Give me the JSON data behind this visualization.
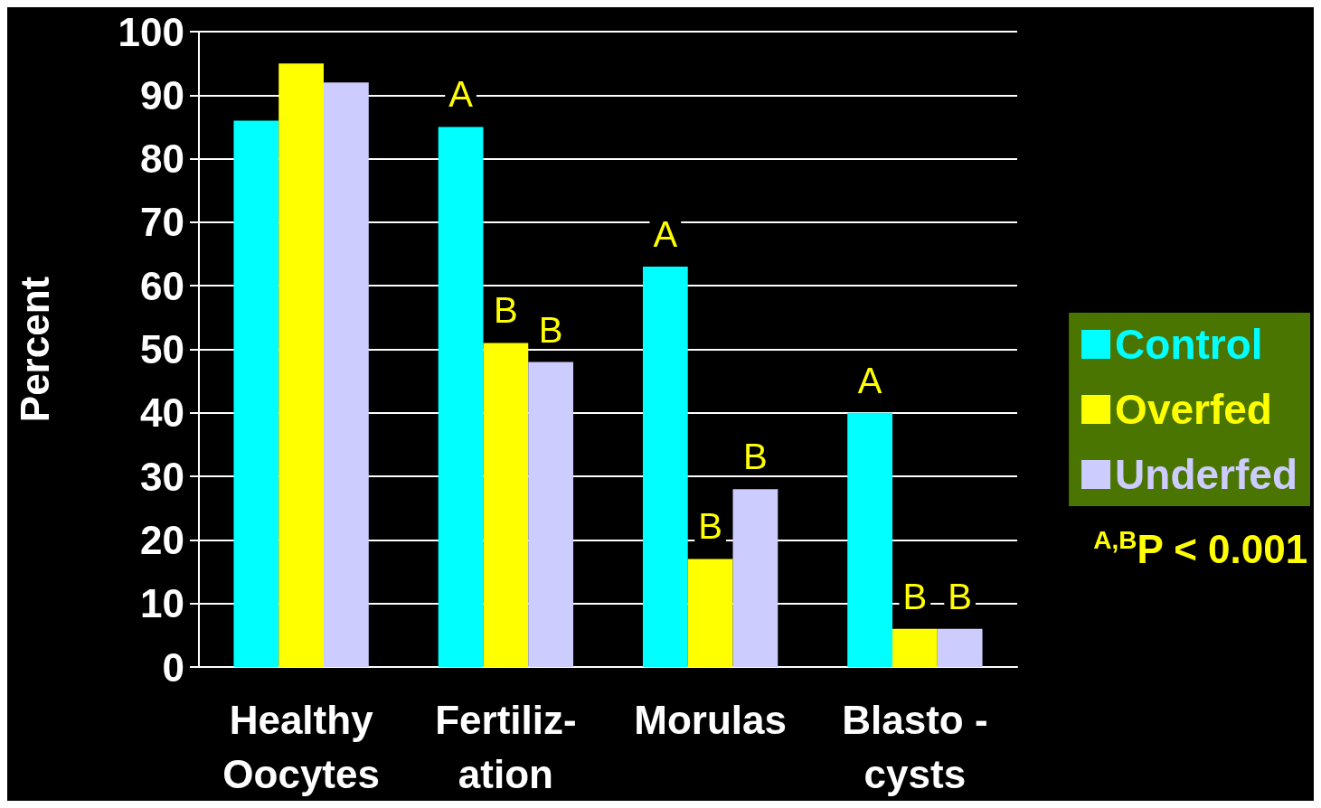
{
  "chart_data": {
    "type": "bar",
    "ylabel": "Percent",
    "categories": [
      "Healthy\nOocytes",
      "Fertiliz-\nation",
      "Morulas",
      "Blasto -\ncysts"
    ],
    "series": [
      {
        "name": "Control",
        "color": "#00ffff",
        "values": [
          86,
          85,
          63,
          40
        ],
        "value_labels": [
          null,
          "A",
          "A",
          "A"
        ]
      },
      {
        "name": "Overfed",
        "color": "#ffff00",
        "values": [
          95,
          51,
          17,
          6
        ],
        "value_labels": [
          null,
          "B",
          "B",
          "B"
        ]
      },
      {
        "name": "Underfed",
        "color": "#ccccff",
        "values": [
          92,
          48,
          28,
          6
        ],
        "value_labels": [
          null,
          "B",
          "B",
          "B"
        ]
      }
    ],
    "ylim": [
      0,
      100
    ],
    "yticks": [
      0,
      10,
      20,
      30,
      40,
      50,
      60,
      70,
      80,
      90,
      100
    ],
    "grid": "y",
    "legend": "right",
    "annotations": [
      "$^{A,B}$P < 0.001"
    ]
  }
}
